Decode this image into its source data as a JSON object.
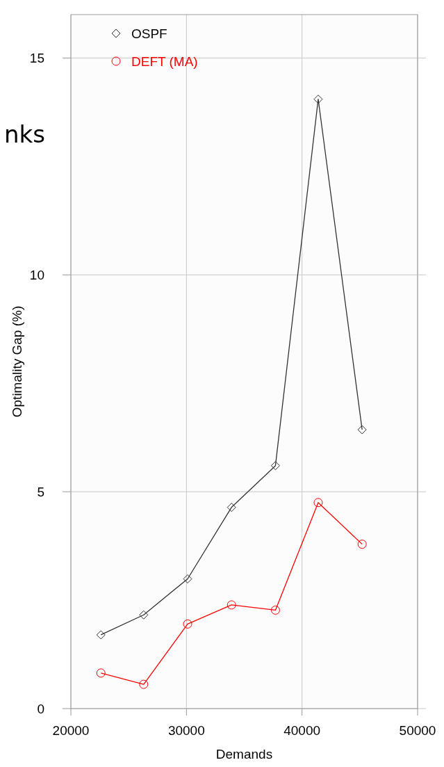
{
  "chart_data": {
    "type": "line",
    "xlabel": "Demands",
    "ylabel": "Optimality Gap (%)",
    "annotations": [
      "nks"
    ],
    "xlim": [
      20000,
      50000
    ],
    "xticks": [
      20000,
      30000,
      40000,
      50000
    ],
    "ylim": [
      0,
      16
    ],
    "yticks": [
      0,
      5,
      10,
      15
    ],
    "grid": true,
    "legend": "top left",
    "series": [
      {
        "name": "OSPF",
        "color": "#333333",
        "marker": "diamond",
        "x": [
          22600,
          26300,
          30100,
          33900,
          37700,
          41400,
          45200
        ],
        "values": [
          1.7,
          2.16,
          2.99,
          4.64,
          5.6,
          14.05,
          6.43
        ]
      },
      {
        "name": "DEFT (MA)",
        "color": "#ff0000",
        "marker": "circle",
        "x": [
          22600,
          26300,
          30100,
          33900,
          37700,
          41400,
          45200
        ],
        "values": [
          0.82,
          0.56,
          1.95,
          2.39,
          2.27,
          4.75,
          3.79
        ]
      }
    ]
  }
}
